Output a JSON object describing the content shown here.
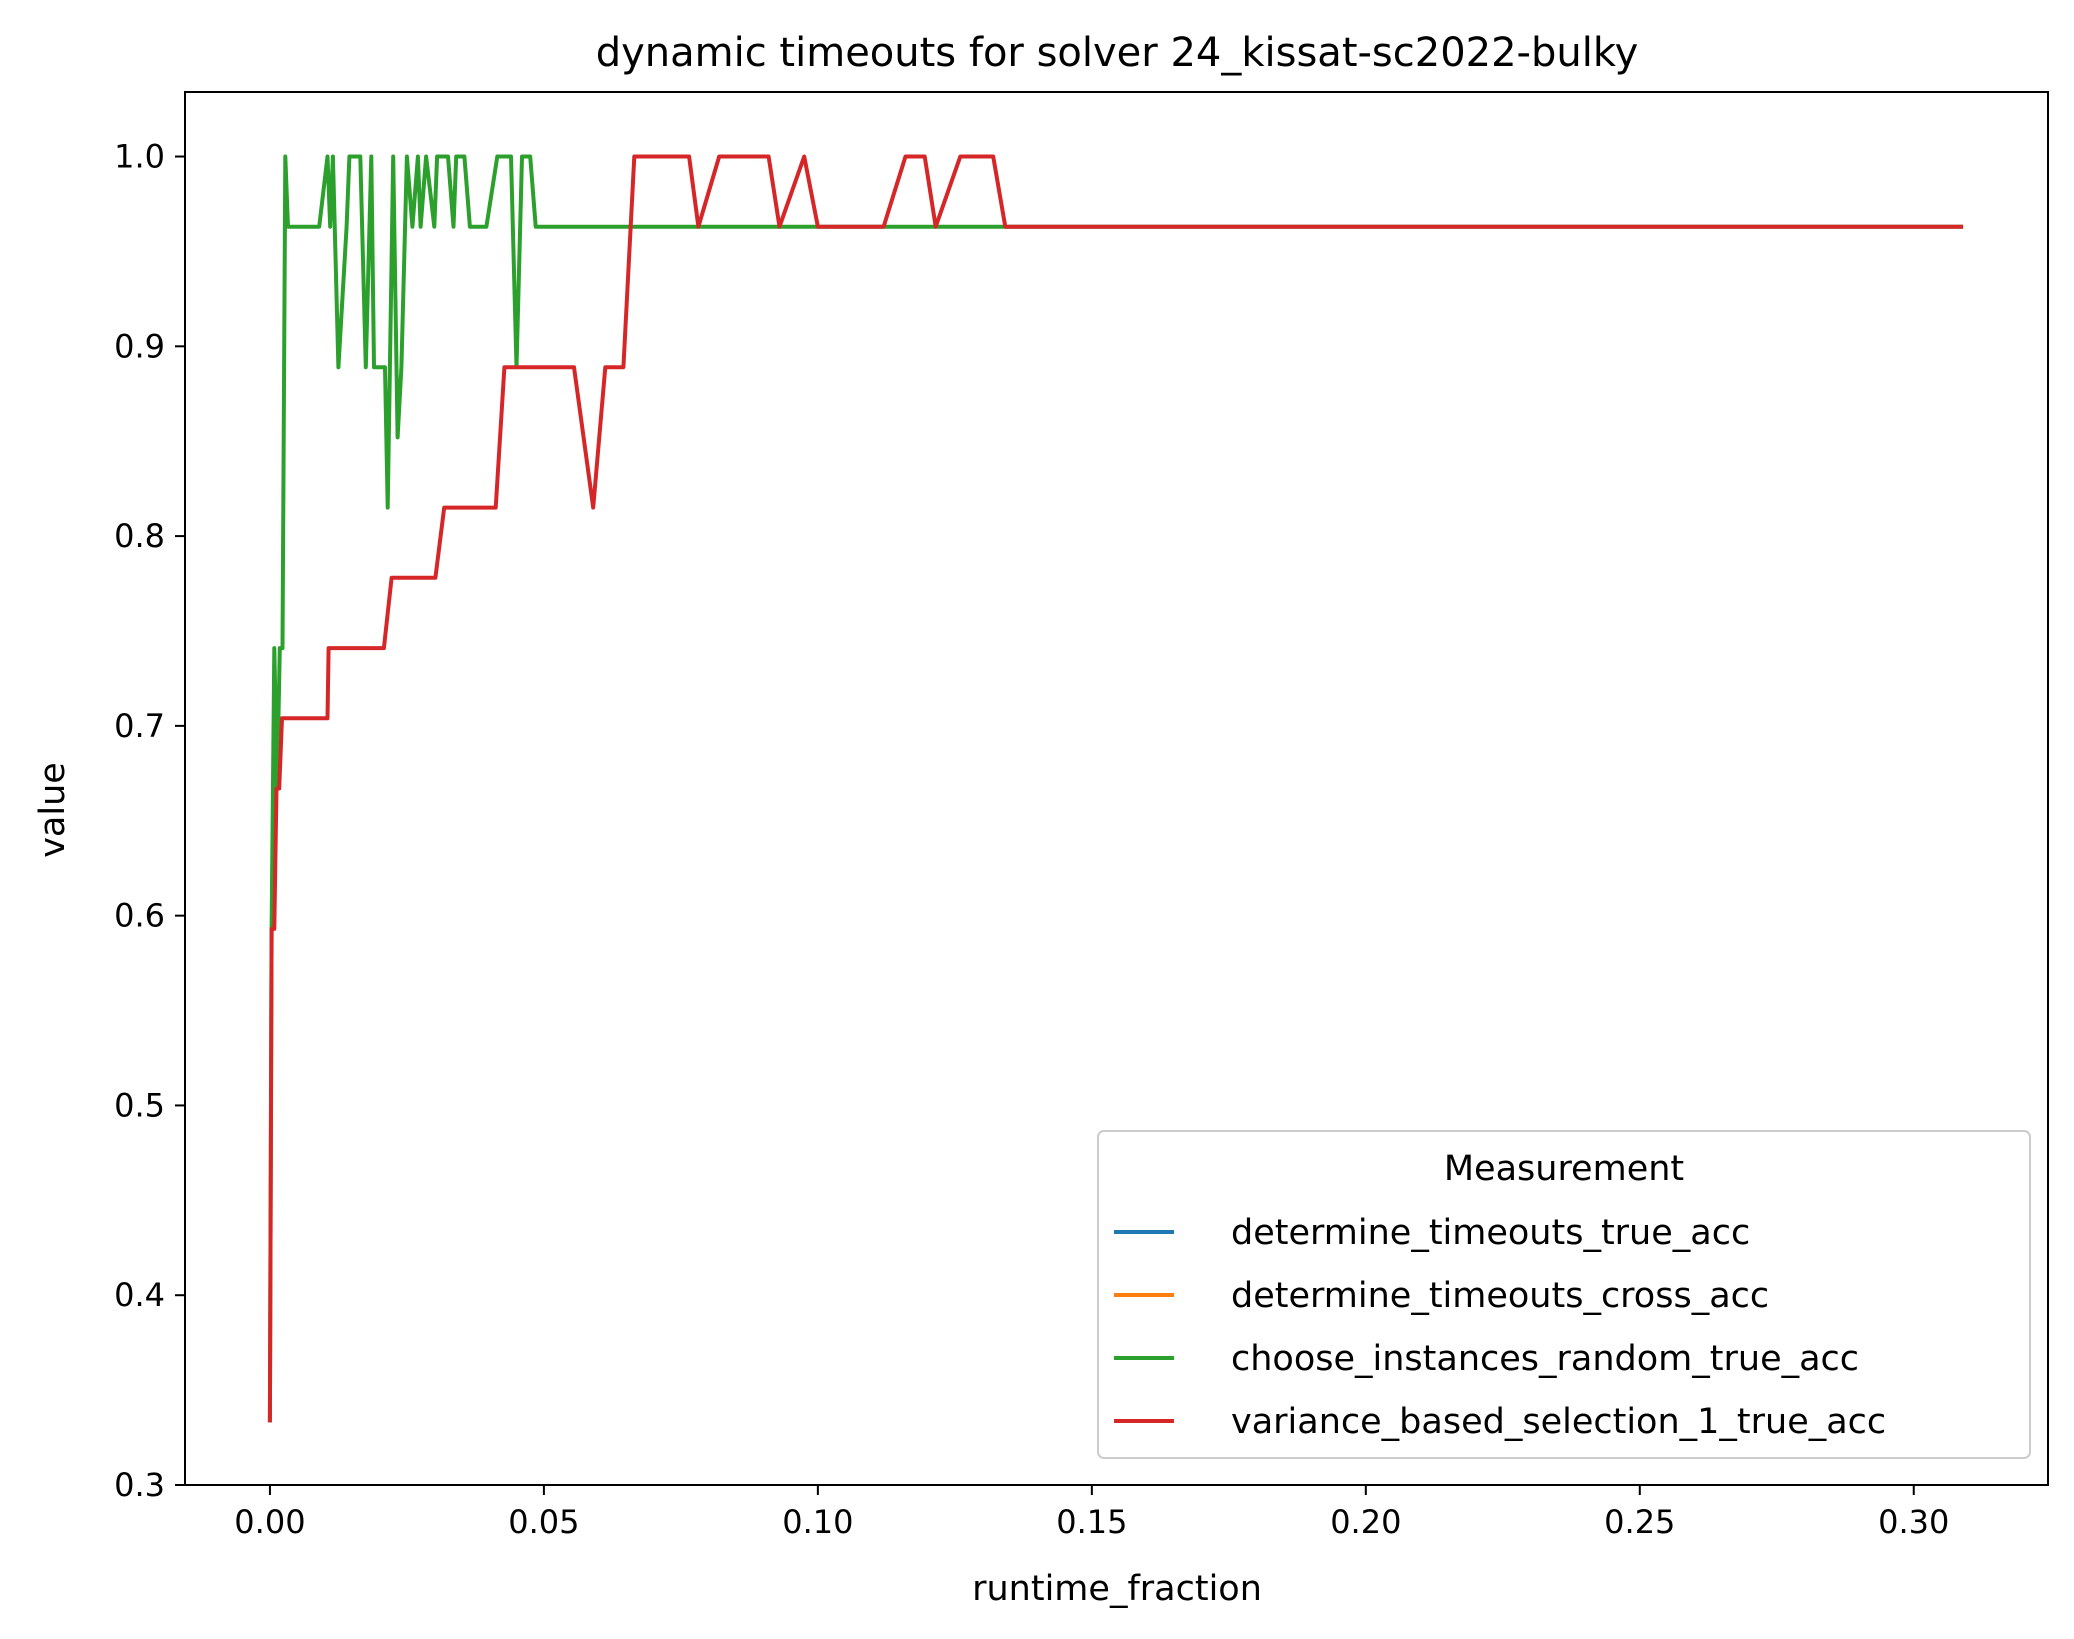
{
  "chart_data": {
    "type": "line",
    "title": "dynamic timeouts for solver 24_kissat-sc2022-bulky",
    "xlabel": "runtime_fraction",
    "ylabel": "value",
    "xlim": [
      -0.0155,
      0.3245
    ],
    "ylim": [
      0.3,
      1.034
    ],
    "xticks": [
      "0.00",
      "0.05",
      "0.10",
      "0.15",
      "0.20",
      "0.25",
      "0.30"
    ],
    "yticks": [
      "0.3",
      "0.4",
      "0.5",
      "0.6",
      "0.7",
      "0.8",
      "0.9",
      "1.0"
    ],
    "legend": {
      "title": "Measurement",
      "position": "lower-right"
    },
    "grid": false,
    "series": [
      {
        "name": "determine_timeouts_true_acc",
        "color": "#1f77b4",
        "points": []
      },
      {
        "name": "determine_timeouts_cross_acc",
        "color": "#ff7f0e",
        "points": []
      },
      {
        "name": "choose_instances_random_true_acc",
        "color": "#2ca02c",
        "points": [
          [
            0.0,
            0.333
          ],
          [
            0.0003,
            0.593
          ],
          [
            0.0008,
            0.741
          ],
          [
            0.0013,
            0.667
          ],
          [
            0.0018,
            0.741
          ],
          [
            0.0023,
            0.741
          ],
          [
            0.0028,
            1.0
          ],
          [
            0.0033,
            0.963
          ],
          [
            0.009,
            0.963
          ],
          [
            0.0105,
            1.0
          ],
          [
            0.011,
            0.963
          ],
          [
            0.0115,
            1.0
          ],
          [
            0.0125,
            0.889
          ],
          [
            0.014,
            0.963
          ],
          [
            0.0145,
            1.0
          ],
          [
            0.0165,
            1.0
          ],
          [
            0.0175,
            0.889
          ],
          [
            0.0185,
            1.0
          ],
          [
            0.019,
            0.889
          ],
          [
            0.021,
            0.889
          ],
          [
            0.0215,
            0.815
          ],
          [
            0.0225,
            1.0
          ],
          [
            0.0233,
            0.852
          ],
          [
            0.024,
            0.889
          ],
          [
            0.025,
            1.0
          ],
          [
            0.026,
            0.963
          ],
          [
            0.027,
            1.0
          ],
          [
            0.0275,
            0.963
          ],
          [
            0.0285,
            1.0
          ],
          [
            0.03,
            0.963
          ],
          [
            0.0305,
            1.0
          ],
          [
            0.0325,
            1.0
          ],
          [
            0.0335,
            0.963
          ],
          [
            0.034,
            1.0
          ],
          [
            0.0355,
            1.0
          ],
          [
            0.0365,
            0.963
          ],
          [
            0.0395,
            0.963
          ],
          [
            0.0415,
            1.0
          ],
          [
            0.044,
            1.0
          ],
          [
            0.045,
            0.889
          ],
          [
            0.046,
            1.0
          ],
          [
            0.0475,
            1.0
          ],
          [
            0.0485,
            0.963
          ],
          [
            0.134,
            0.963
          ],
          [
            0.309,
            0.963
          ]
        ]
      },
      {
        "name": "variance_based_selection_1_true_acc",
        "color": "#d62728",
        "points": [
          [
            0.0,
            0.333
          ],
          [
            0.0003,
            0.593
          ],
          [
            0.0008,
            0.593
          ],
          [
            0.0012,
            0.667
          ],
          [
            0.0017,
            0.667
          ],
          [
            0.0022,
            0.704
          ],
          [
            0.0105,
            0.704
          ],
          [
            0.0107,
            0.741
          ],
          [
            0.0208,
            0.741
          ],
          [
            0.0222,
            0.778
          ],
          [
            0.0302,
            0.778
          ],
          [
            0.0318,
            0.815
          ],
          [
            0.0412,
            0.815
          ],
          [
            0.0428,
            0.889
          ],
          [
            0.0555,
            0.889
          ],
          [
            0.059,
            0.815
          ],
          [
            0.0612,
            0.889
          ],
          [
            0.0645,
            0.889
          ],
          [
            0.0665,
            1.0
          ],
          [
            0.0765,
            1.0
          ],
          [
            0.0782,
            0.963
          ],
          [
            0.082,
            1.0
          ],
          [
            0.091,
            1.0
          ],
          [
            0.093,
            0.963
          ],
          [
            0.0975,
            1.0
          ],
          [
            0.1,
            0.963
          ],
          [
            0.112,
            0.963
          ],
          [
            0.116,
            1.0
          ],
          [
            0.1195,
            1.0
          ],
          [
            0.1215,
            0.963
          ],
          [
            0.126,
            1.0
          ],
          [
            0.132,
            1.0
          ],
          [
            0.1342,
            0.963
          ],
          [
            0.309,
            0.963
          ]
        ]
      }
    ]
  }
}
